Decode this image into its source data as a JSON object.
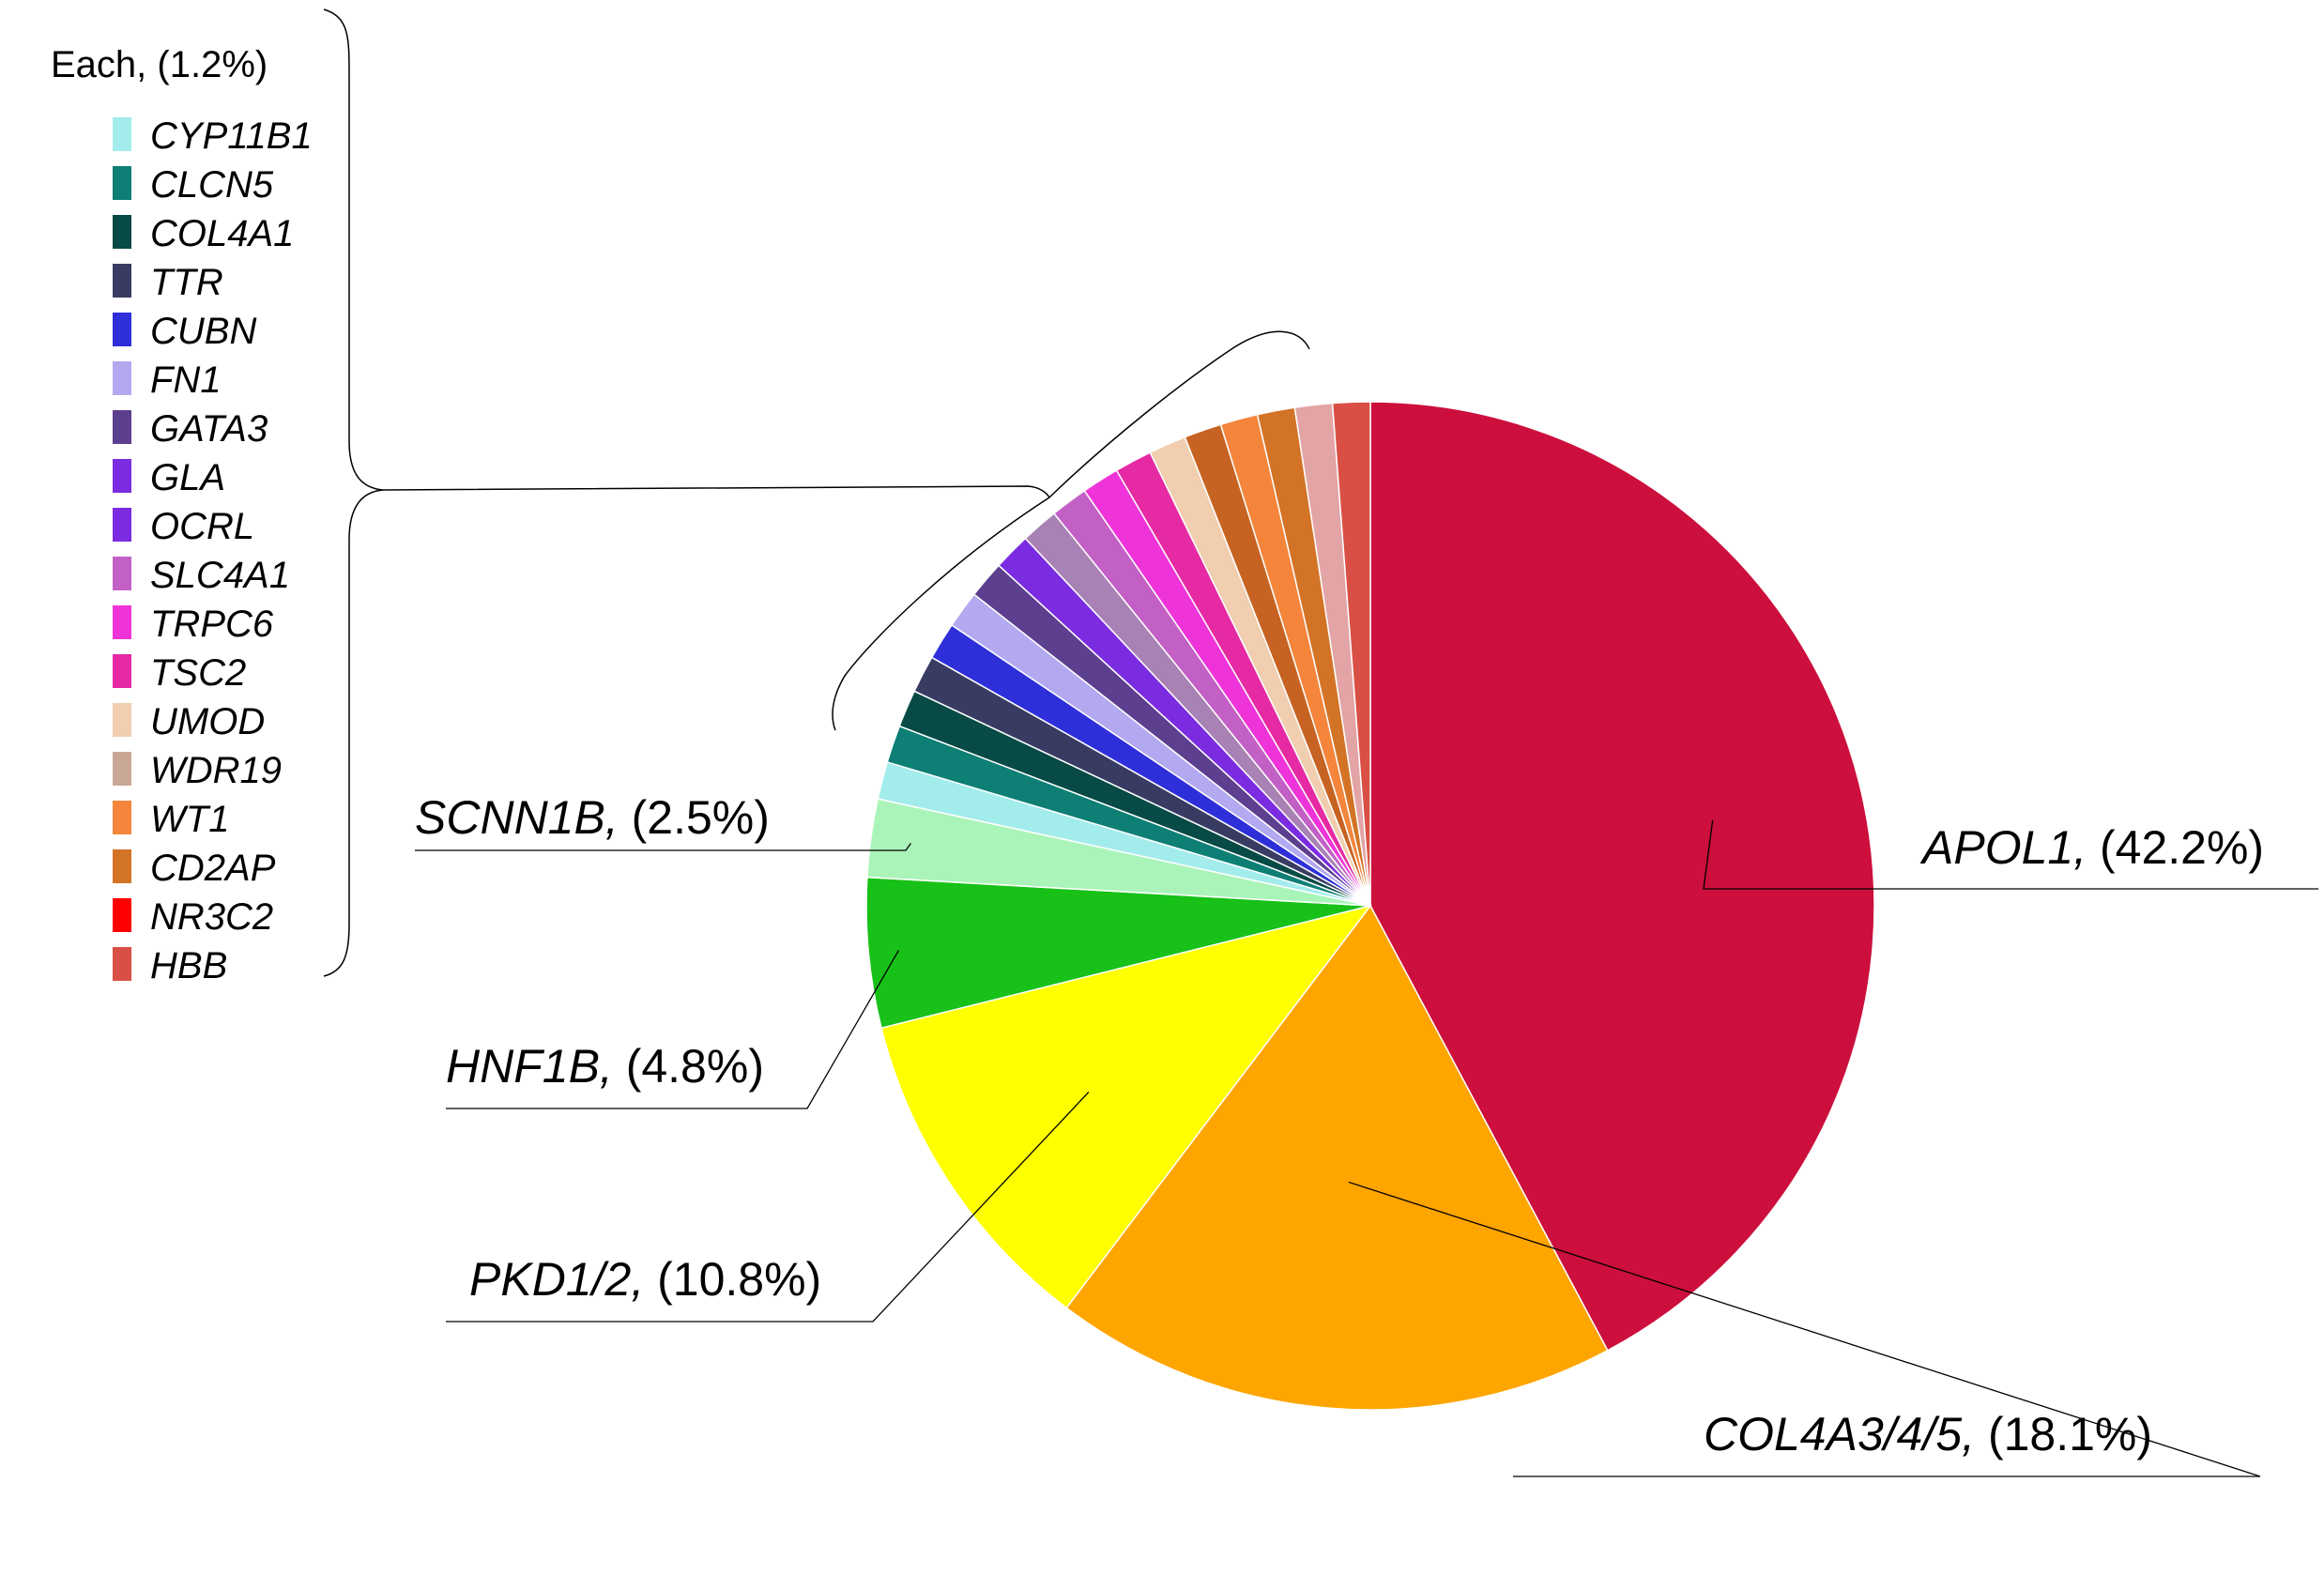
{
  "chart_data": {
    "type": "pie",
    "title": "",
    "slices": [
      {
        "label": "APOL1",
        "value": 42.2,
        "pct": "(42.2%)",
        "color": "#cc0f3c"
      },
      {
        "label": "COL4A3/4/5",
        "value": 18.1,
        "pct": "(18.1%)",
        "color": "#ffa500"
      },
      {
        "label": "PKD1/2",
        "value": 10.8,
        "pct": "(10.8%)",
        "color": "#ffff00"
      },
      {
        "label": "HNF1B",
        "value": 4.8,
        "pct": "(4.8%)",
        "color": "#17c117"
      },
      {
        "label": "SCNN1B",
        "value": 2.5,
        "pct": "(2.5%)",
        "color": "#aaf4b9"
      },
      {
        "label": "CYP11B1",
        "value": 1.2,
        "color": "#a3ecec"
      },
      {
        "label": "CLCN5",
        "value": 1.2,
        "color": "#0d7f74"
      },
      {
        "label": "COL4A1",
        "value": 1.2,
        "color": "#084a45"
      },
      {
        "label": "TTR",
        "value": 1.2,
        "color": "#383c63"
      },
      {
        "label": "CUBN",
        "value": 1.2,
        "color": "#2e2fd9"
      },
      {
        "label": "FN1",
        "value": 1.2,
        "color": "#b3a9f1"
      },
      {
        "label": "GATA3",
        "value": 1.2,
        "color": "#5c3f8f"
      },
      {
        "label": "GLA",
        "value": 1.2,
        "color": "#7b2ce0"
      },
      {
        "label": "OCRL",
        "value": 1.2,
        "color": "#a882b4"
      },
      {
        "label": "SLC4A1",
        "value": 1.2,
        "color": "#c260c5"
      },
      {
        "label": "TRPC6",
        "value": 1.2,
        "color": "#ee34d8"
      },
      {
        "label": "TSC2",
        "value": 1.2,
        "color": "#e62aa3"
      },
      {
        "label": "UMOD",
        "value": 1.2,
        "color": "#f0ceaf"
      },
      {
        "label": "WDR19",
        "value": 1.2,
        "color": "#c76322"
      },
      {
        "label": "WT1",
        "value": 1.2,
        "color": "#f4853b"
      },
      {
        "label": "CD2AP",
        "value": 1.2,
        "color": "#d37326"
      },
      {
        "label": "NR3C2",
        "value": 1.2,
        "color": "#e3a4a5"
      },
      {
        "label": "HBB",
        "value": 1.2,
        "color": "#d94f45"
      }
    ],
    "legend": {
      "header": "Each, (1.2%)",
      "placement": "top-left",
      "items": [
        {
          "label": "CYP11B1",
          "color": "#a3ecec"
        },
        {
          "label": "CLCN5",
          "color": "#0d7f74"
        },
        {
          "label": "COL4A1",
          "color": "#084a45"
        },
        {
          "label": "TTR",
          "color": "#383c63"
        },
        {
          "label": "CUBN",
          "color": "#2e2fd9"
        },
        {
          "label": "FN1",
          "color": "#b3a9f1"
        },
        {
          "label": "GATA3",
          "color": "#5c3f8f"
        },
        {
          "label": "GLA",
          "color": "#7b2ce0"
        },
        {
          "label": "OCRL",
          "color": "#7b2ce0"
        },
        {
          "label": "SLC4A1",
          "color": "#c260c5"
        },
        {
          "label": "TRPC6",
          "color": "#ee34d8"
        },
        {
          "label": "TSC2",
          "color": "#e62aa3"
        },
        {
          "label": "UMOD",
          "color": "#f0ceaf"
        },
        {
          "label": "WDR19",
          "color": "#c9a797"
        },
        {
          "label": "WT1",
          "color": "#f4853b"
        },
        {
          "label": "CD2AP",
          "color": "#d37326"
        },
        {
          "label": "NR3C2",
          "color": "#ff0000"
        },
        {
          "label": "HBB",
          "color": "#d94f45"
        }
      ]
    }
  }
}
